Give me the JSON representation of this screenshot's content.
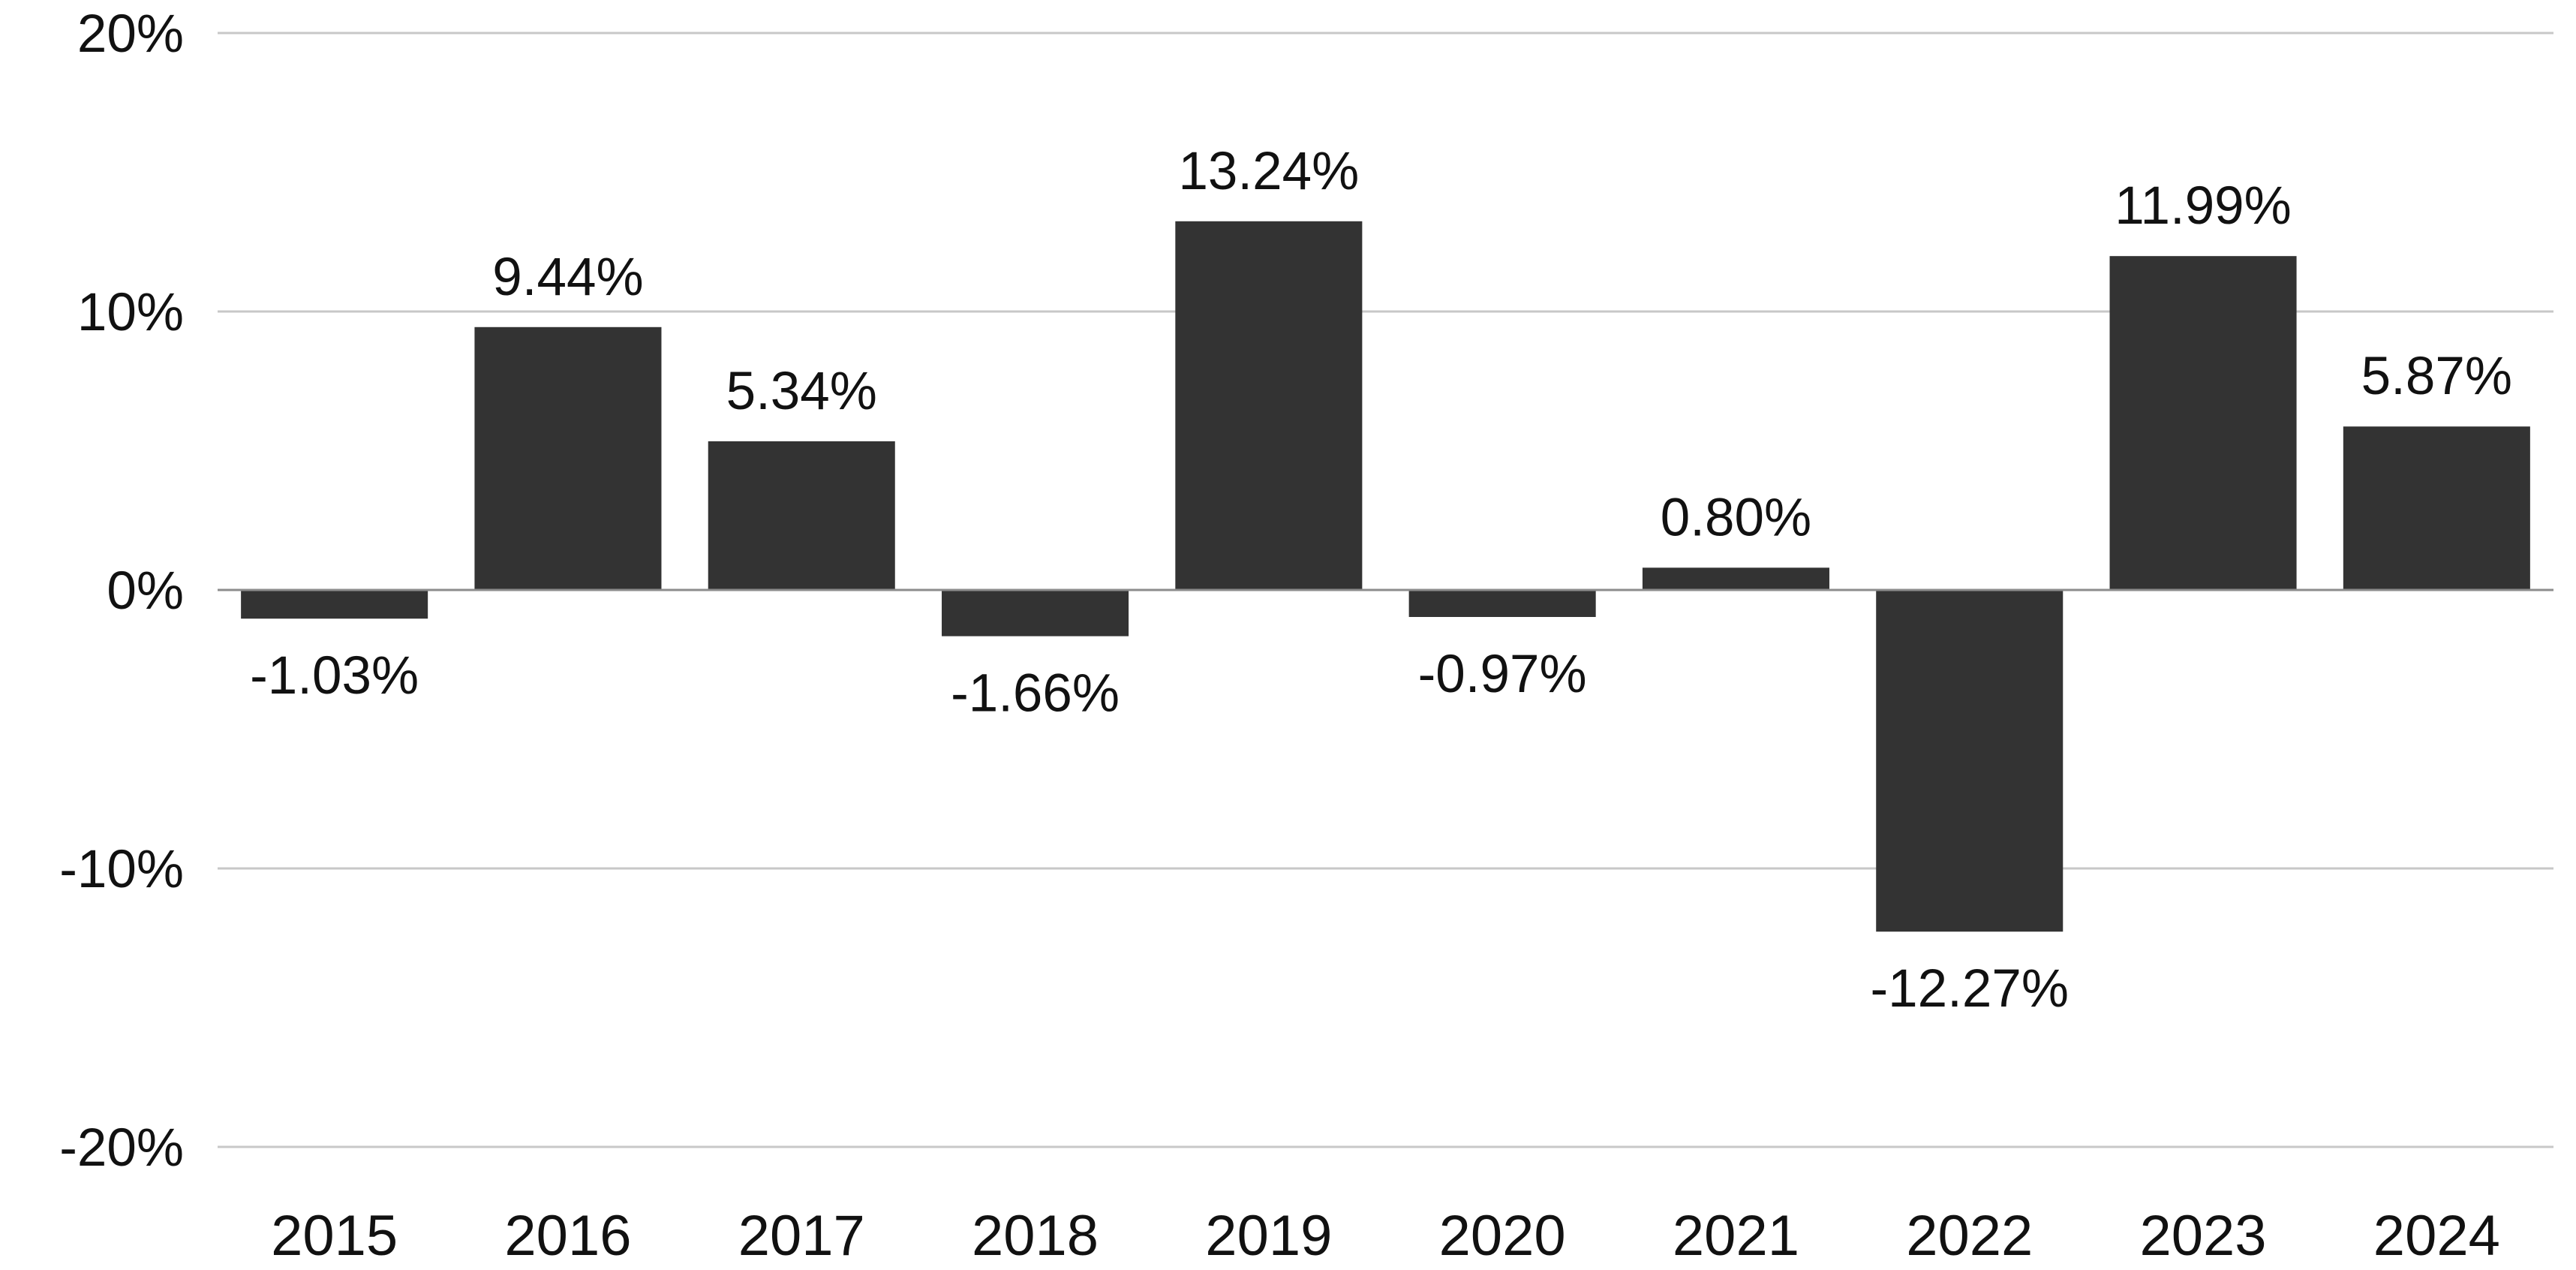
{
  "chart_data": {
    "type": "bar",
    "title": "",
    "xlabel": "",
    "ylabel": "",
    "categories": [
      "2015",
      "2016",
      "2017",
      "2018",
      "2019",
      "2020",
      "2021",
      "2022",
      "2023",
      "2024"
    ],
    "values": [
      -1.03,
      9.44,
      5.34,
      -1.66,
      13.24,
      -0.97,
      0.8,
      -12.27,
      11.99,
      5.87
    ],
    "data_labels": [
      "-1.03%",
      "9.44%",
      "5.34%",
      "-1.66%",
      "13.24%",
      "-0.97%",
      "0.80%",
      "-12.27%",
      "11.99%",
      "5.87%"
    ],
    "ylim": [
      -20,
      20
    ],
    "yticks": [
      20,
      10,
      0,
      -10,
      -20
    ],
    "ytick_labels": [
      "20%",
      "10%",
      "0%",
      "-10%",
      "-20%"
    ],
    "grid": true,
    "legend": "none",
    "bar_color": "#333333"
  }
}
